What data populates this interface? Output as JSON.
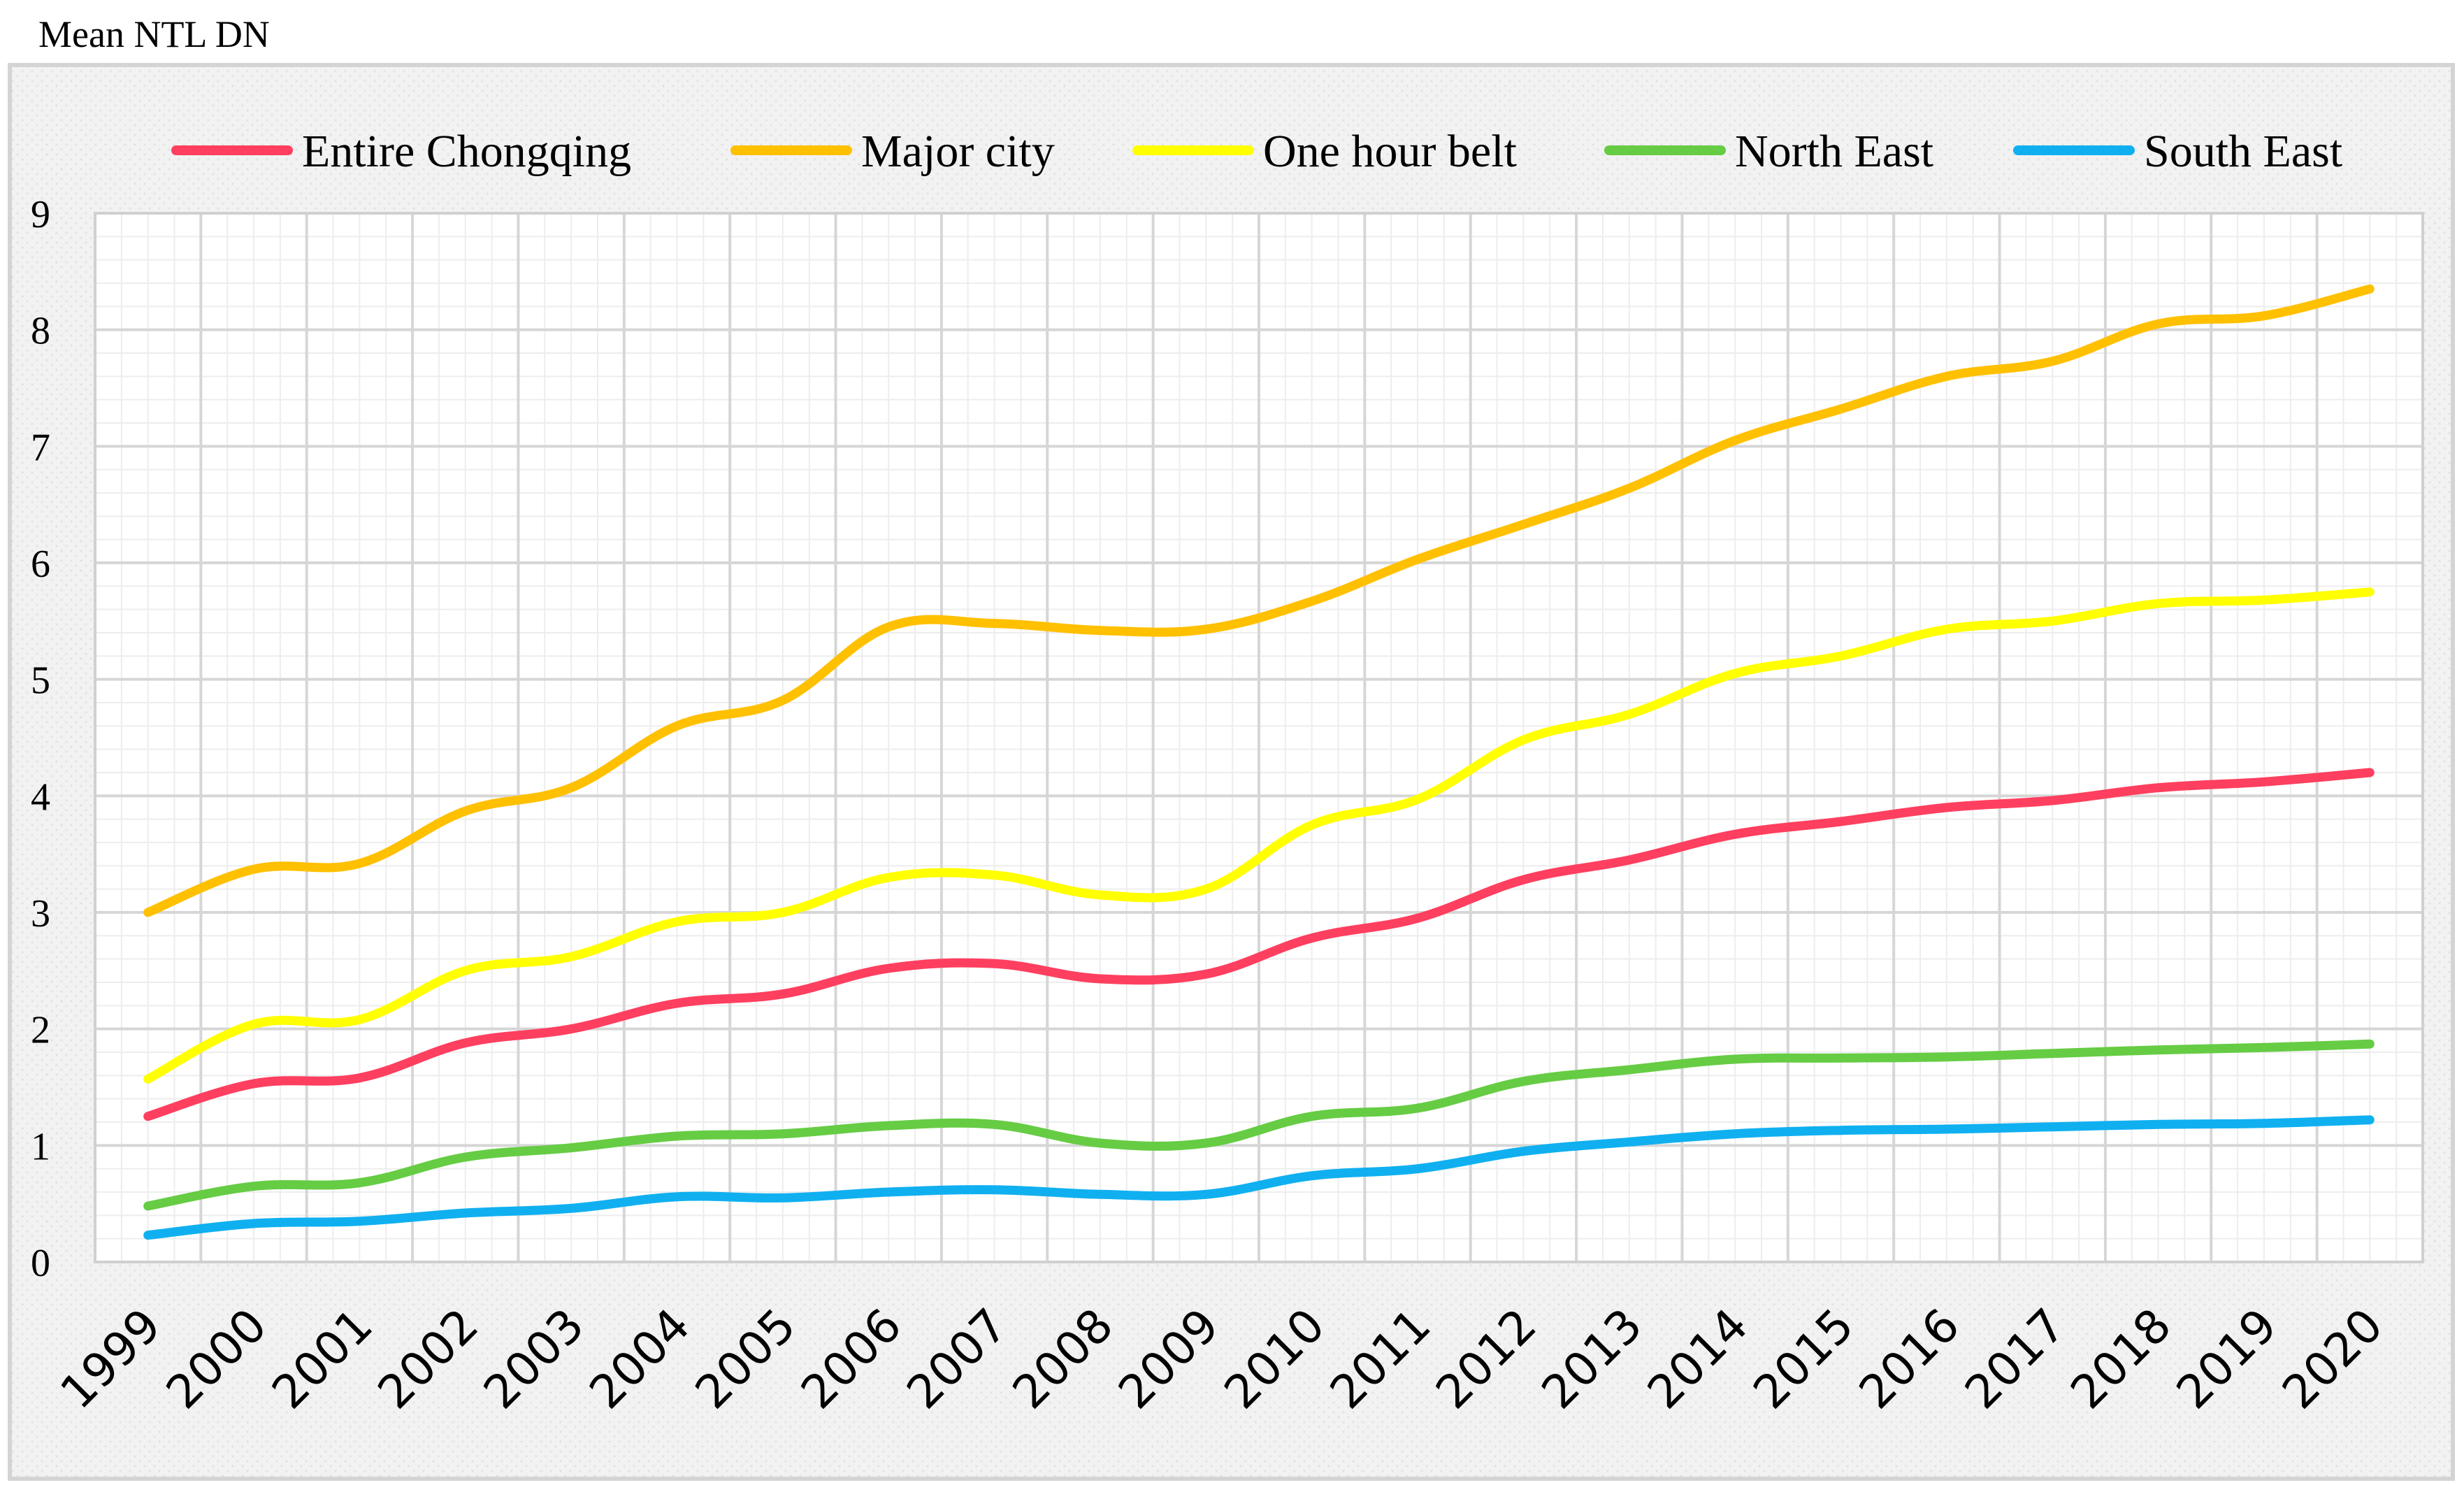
{
  "chart_data": {
    "type": "line",
    "title": "",
    "xlabel": "",
    "ylabel": "Mean NTL DN",
    "ylim": [
      0,
      9
    ],
    "yticks": [
      "0",
      "1",
      "2",
      "3",
      "4",
      "5",
      "6",
      "7",
      "8",
      "9"
    ],
    "categories": [
      "1999",
      "2000",
      "2001",
      "2002",
      "2003",
      "2004",
      "2005",
      "2006",
      "2007",
      "2008",
      "2009",
      "2010",
      "2011",
      "2012",
      "2013",
      "2014",
      "2015",
      "2016",
      "2017",
      "2018",
      "2019",
      "2020"
    ],
    "legend_position": "top",
    "grid": true,
    "series": [
      {
        "name": "Entire Chongqing",
        "color": "#ff3f5f",
        "values": [
          1.25,
          1.53,
          1.58,
          1.88,
          2.0,
          2.22,
          2.3,
          2.52,
          2.56,
          2.43,
          2.47,
          2.78,
          2.95,
          3.28,
          3.45,
          3.67,
          3.78,
          3.9,
          3.96,
          4.07,
          4.12,
          4.2
        ]
      },
      {
        "name": "Major city",
        "color": "#ffc000",
        "values": [
          3.0,
          3.37,
          3.42,
          3.87,
          4.07,
          4.6,
          4.82,
          5.45,
          5.48,
          5.42,
          5.43,
          5.67,
          6.03,
          6.33,
          6.64,
          7.05,
          7.32,
          7.6,
          7.73,
          8.05,
          8.12,
          8.35
        ]
      },
      {
        "name": "One hour belt",
        "color": "#ffff00",
        "values": [
          1.57,
          2.04,
          2.08,
          2.5,
          2.62,
          2.92,
          3.0,
          3.3,
          3.32,
          3.15,
          3.2,
          3.75,
          3.97,
          4.48,
          4.7,
          5.05,
          5.2,
          5.43,
          5.5,
          5.65,
          5.68,
          5.75
        ]
      },
      {
        "name": "North East",
        "color": "#66cc44",
        "values": [
          0.48,
          0.65,
          0.68,
          0.9,
          0.98,
          1.08,
          1.1,
          1.17,
          1.18,
          1.02,
          1.02,
          1.25,
          1.32,
          1.55,
          1.65,
          1.74,
          1.75,
          1.76,
          1.79,
          1.82,
          1.84,
          1.87
        ]
      },
      {
        "name": "South East",
        "color": "#10b0f0",
        "values": [
          0.23,
          0.33,
          0.35,
          0.42,
          0.46,
          0.56,
          0.55,
          0.6,
          0.62,
          0.58,
          0.58,
          0.74,
          0.8,
          0.95,
          1.03,
          1.1,
          1.13,
          1.14,
          1.16,
          1.18,
          1.19,
          1.22
        ]
      }
    ]
  }
}
